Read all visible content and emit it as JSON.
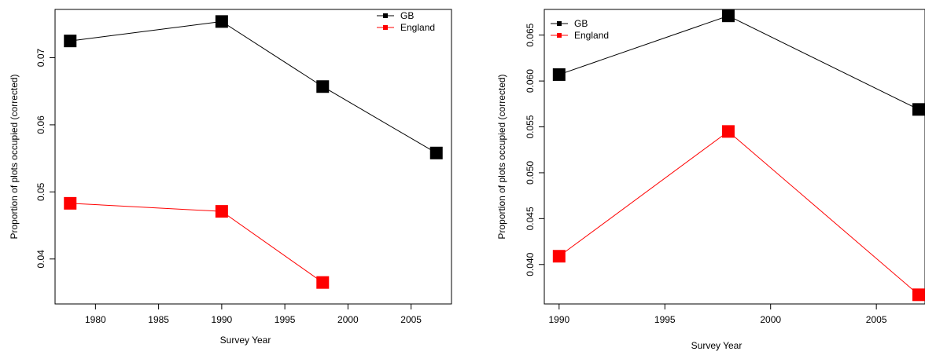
{
  "chart_data": [
    {
      "type": "line",
      "xlabel": "Survey Year",
      "ylabel": "Proportion of plots occupied (corrected)",
      "xlim": [
        1976.8,
        2008.2
      ],
      "ylim": [
        0.0333,
        0.0772
      ],
      "xticks": [
        1980,
        1985,
        1990,
        1995,
        2000,
        2005
      ],
      "yticks": [
        0.04,
        0.05,
        0.06,
        0.07
      ],
      "ytick_labels": [
        "0.04",
        "0.05",
        "0.06",
        "0.07"
      ],
      "legend": {
        "position": "top-right"
      },
      "series": [
        {
          "name": "GB",
          "color": "#000000",
          "points": [
            [
              1978,
              0.0725
            ],
            [
              1990,
              0.0754
            ],
            [
              1998,
              0.0657
            ],
            [
              2007,
              0.0558
            ]
          ]
        },
        {
          "name": "England",
          "color": "#ff0000",
          "points": [
            [
              1978,
              0.0483
            ],
            [
              1990,
              0.0471
            ],
            [
              1998,
              0.0365
            ]
          ]
        }
      ]
    },
    {
      "type": "line",
      "xlabel": "Survey Year",
      "ylabel": "Proportion of plots occupied (corrected)",
      "xlim": [
        1989.3,
        2007.3
      ],
      "ylim": [
        0.0357,
        0.0678
      ],
      "xticks": [
        1990,
        1995,
        2000,
        2005
      ],
      "yticks": [
        0.04,
        0.045,
        0.05,
        0.055,
        0.06,
        0.065
      ],
      "ytick_labels": [
        "0.040",
        "0.045",
        "0.050",
        "0.055",
        "0.060",
        "0.065"
      ],
      "legend": {
        "position": "top-left"
      },
      "series": [
        {
          "name": "GB",
          "color": "#000000",
          "points": [
            [
              1990,
              0.0607
            ],
            [
              1998,
              0.0671
            ],
            [
              2007,
              0.0569
            ]
          ]
        },
        {
          "name": "England",
          "color": "#ff0000",
          "points": [
            [
              1990,
              0.0409
            ],
            [
              1998,
              0.0545
            ],
            [
              2007,
              0.0367
            ]
          ]
        }
      ]
    }
  ]
}
